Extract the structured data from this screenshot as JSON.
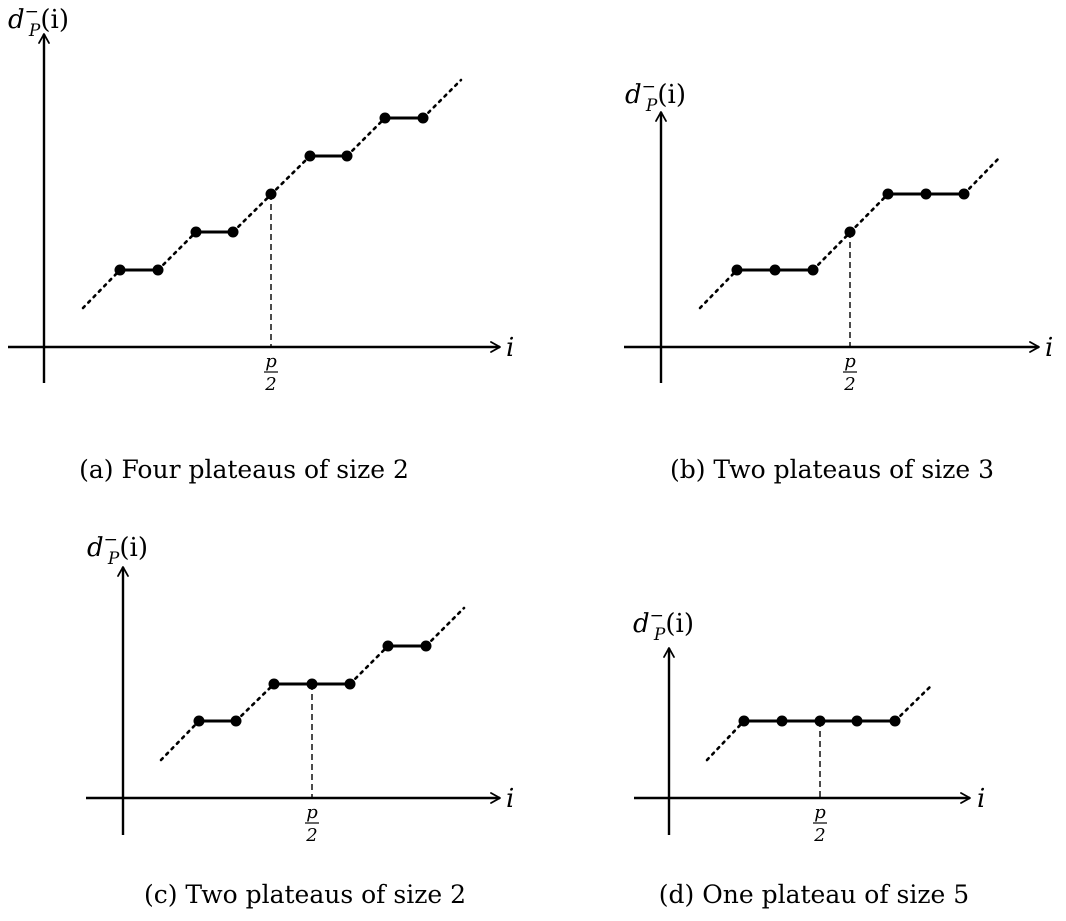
{
  "panels": [
    {
      "id": "a",
      "caption": "(a) Four plateaus of size 2",
      "y_label_main": "d",
      "y_label_sup": "−",
      "y_label_sub": "P",
      "y_label_arg": "(i)",
      "x_label": "i",
      "tick_num": "p",
      "tick_den": "2",
      "plateau_count": 4,
      "plateau_size": 2
    },
    {
      "id": "b",
      "caption": "(b) Two plateaus of size 3",
      "y_label_main": "d",
      "y_label_sup": "−",
      "y_label_sub": "P",
      "y_label_arg": "(i)",
      "x_label": "i",
      "tick_num": "p",
      "tick_den": "2",
      "plateau_count": 2,
      "plateau_size": 3
    },
    {
      "id": "c",
      "caption": "(c) Two plateaus of size 2",
      "y_label_main": "d",
      "y_label_sup": "−",
      "y_label_sub": "P",
      "y_label_arg": "(i)",
      "x_label": "i",
      "tick_num": "p",
      "tick_den": "2",
      "plateau_count": 2,
      "plateau_size": 2
    },
    {
      "id": "d",
      "caption": "(d) One plateau of size 5",
      "y_label_main": "d",
      "y_label_sup": "−",
      "y_label_sub": "P",
      "y_label_arg": "(i)",
      "x_label": "i",
      "tick_num": "p",
      "tick_den": "2",
      "plateau_count": 1,
      "plateau_size": 5
    }
  ]
}
